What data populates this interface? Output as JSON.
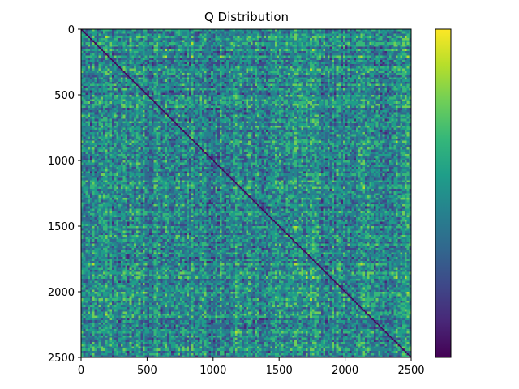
{
  "chart_data": {
    "type": "heatmap",
    "title": "Q Distribution",
    "xlabel": "",
    "ylabel": "",
    "x_range": [
      0,
      2500
    ],
    "y_range": [
      0,
      2500
    ],
    "y_inverted": true,
    "x_ticks": [
      0,
      500,
      1000,
      1500,
      2000,
      2500
    ],
    "y_ticks": [
      0,
      500,
      1000,
      1500,
      2000,
      2500
    ],
    "colormap": "viridis",
    "colorbar": true,
    "colorbar_ticks": [],
    "diagonal_value": "minimum",
    "grid": false
  },
  "colors": {
    "viridis": [
      "#440154",
      "#482878",
      "#3e4989",
      "#31688e",
      "#26828e",
      "#1f9e89",
      "#35b779",
      "#6ece58",
      "#b5de2b",
      "#fde725"
    ]
  }
}
